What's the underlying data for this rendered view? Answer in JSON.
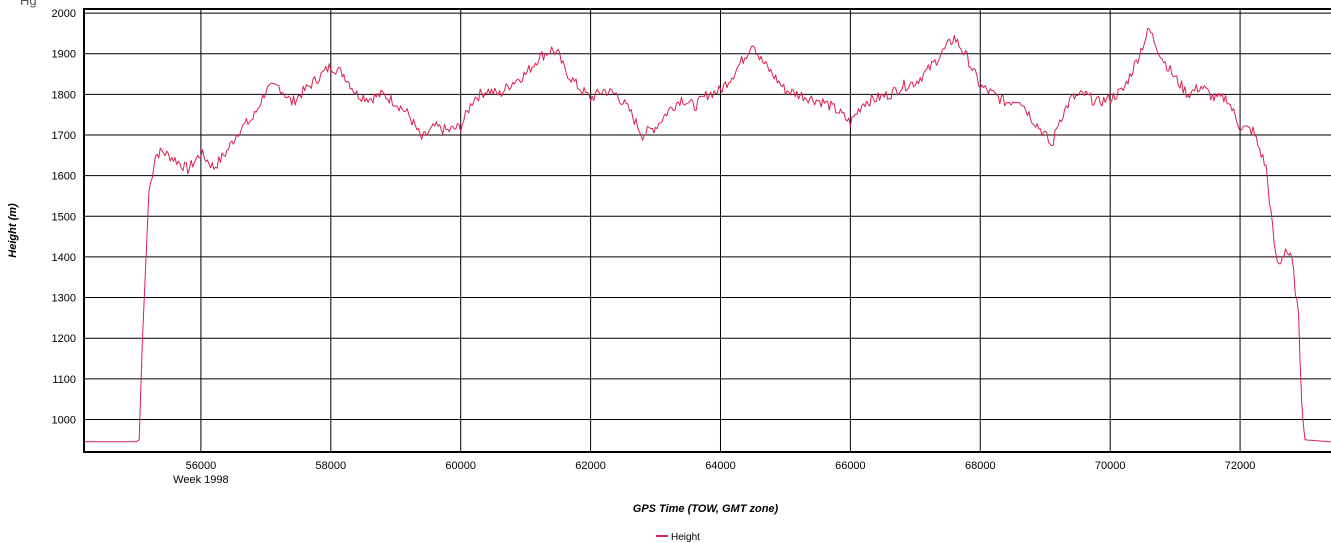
{
  "corner_fragment": "Hg",
  "chart_data": {
    "type": "line",
    "xlabel": "GPS Time (TOW, GMT zone)",
    "ylabel": "Height (m)",
    "xlim": [
      54200,
      73400
    ],
    "ylim": [
      920,
      2010
    ],
    "x_ticks": [
      56000,
      58000,
      60000,
      62000,
      64000,
      66000,
      68000,
      70000,
      72000
    ],
    "y_ticks": [
      1000,
      1100,
      1200,
      1300,
      1400,
      1500,
      1600,
      1700,
      1800,
      1900,
      2000
    ],
    "x_subtitle": {
      "at": 56000,
      "text": "Week 1998"
    },
    "grid": true,
    "legend_position": "bottom-center",
    "colors": {
      "series": "#dc2050",
      "grid": "#000000",
      "frame": "#000000"
    },
    "series": [
      {
        "name": "Height",
        "x": [
          54200,
          55000,
          55050,
          55100,
          55200,
          55300,
          55400,
          55600,
          55800,
          56000,
          56200,
          56400,
          56600,
          56800,
          57000,
          57200,
          57400,
          57600,
          57800,
          58000,
          58200,
          58400,
          58600,
          58800,
          59000,
          59200,
          59400,
          59600,
          59800,
          60000,
          60200,
          60400,
          60600,
          60800,
          61000,
          61200,
          61400,
          61500,
          61600,
          61800,
          62000,
          62200,
          62400,
          62600,
          62800,
          63000,
          63200,
          63400,
          63600,
          63800,
          64000,
          64200,
          64400,
          64500,
          64600,
          64800,
          65000,
          65200,
          65400,
          65600,
          65800,
          66000,
          66200,
          66400,
          66600,
          66800,
          67000,
          67200,
          67400,
          67600,
          67800,
          68000,
          68200,
          68400,
          68600,
          68800,
          69000,
          69100,
          69200,
          69400,
          69600,
          69800,
          70000,
          70200,
          70400,
          70600,
          70800,
          71000,
          71200,
          71400,
          71600,
          71800,
          72000,
          72200,
          72400,
          72500,
          72550,
          72600,
          72700,
          72800,
          72900,
          72950,
          73000,
          73400
        ],
        "y": [
          945,
          945,
          950,
          1200,
          1560,
          1650,
          1660,
          1640,
          1615,
          1655,
          1620,
          1660,
          1715,
          1740,
          1810,
          1820,
          1780,
          1810,
          1840,
          1870,
          1850,
          1800,
          1790,
          1800,
          1780,
          1750,
          1690,
          1720,
          1710,
          1720,
          1790,
          1810,
          1800,
          1830,
          1850,
          1890,
          1910,
          1900,
          1860,
          1820,
          1790,
          1810,
          1800,
          1760,
          1700,
          1720,
          1760,
          1790,
          1770,
          1800,
          1810,
          1850,
          1900,
          1930,
          1890,
          1850,
          1810,
          1800,
          1790,
          1780,
          1760,
          1730,
          1780,
          1790,
          1800,
          1820,
          1830,
          1860,
          1900,
          1940,
          1890,
          1820,
          1800,
          1780,
          1790,
          1740,
          1700,
          1670,
          1730,
          1790,
          1800,
          1780,
          1790,
          1810,
          1880,
          1960,
          1890,
          1840,
          1800,
          1820,
          1790,
          1790,
          1720,
          1710,
          1620,
          1470,
          1400,
          1380,
          1420,
          1390,
          1250,
          1050,
          950,
          945
        ]
      }
    ]
  }
}
